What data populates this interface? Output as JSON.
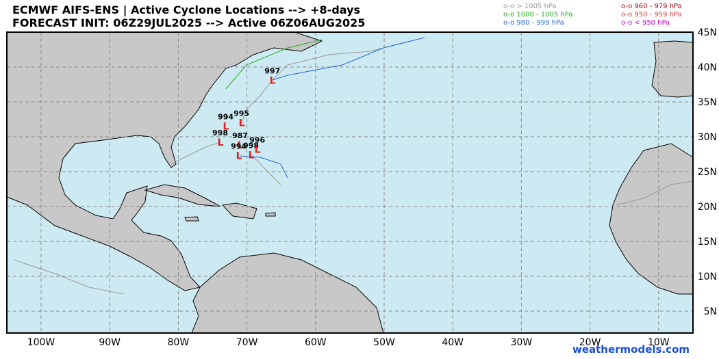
{
  "header": {
    "line1": "ECMWF AIFS-ENS | Active Cyclone Locations --> +8-days",
    "line2": "FORECAST INIT: 06Z29JUL2025 --> Active 06Z06AUG2025"
  },
  "legend": [
    {
      "label": "o-o > 1005 hPa",
      "color": "#999999"
    },
    {
      "label": "o-o 1000 - 1005 hPa",
      "color": "#22aa22"
    },
    {
      "label": "o-o 980 - 999 hPa",
      "color": "#2266dd"
    },
    {
      "label": "o-o 960 - 979 hPa",
      "color": "#aa0000"
    },
    {
      "label": "o-o 950 - 959 hPa",
      "color": "#dd3333"
    },
    {
      "label": "o-o < 950 hPa",
      "color": "#cc00cc"
    }
  ],
  "map": {
    "lon_ticks": [
      {
        "value": -100,
        "label": "100W"
      },
      {
        "value": -90,
        "label": "90W"
      },
      {
        "value": -80,
        "label": "80W"
      },
      {
        "value": -70,
        "label": "70W"
      },
      {
        "value": -60,
        "label": "60W"
      },
      {
        "value": -50,
        "label": "50W"
      },
      {
        "value": -40,
        "label": "40W"
      },
      {
        "value": -30,
        "label": "30W"
      },
      {
        "value": -20,
        "label": "20W"
      },
      {
        "value": -10,
        "label": "10W"
      }
    ],
    "lat_ticks": [
      {
        "value": 45,
        "label": "45N"
      },
      {
        "value": 40,
        "label": "40N"
      },
      {
        "value": 35,
        "label": "35N"
      },
      {
        "value": 30,
        "label": "30N"
      },
      {
        "value": 25,
        "label": "25N"
      },
      {
        "value": 20,
        "label": "20N"
      },
      {
        "value": 15,
        "label": "15N"
      },
      {
        "value": 10,
        "label": "10N"
      },
      {
        "value": 5,
        "label": "5N"
      }
    ],
    "cyclones": [
      {
        "pressure": "997",
        "lon": -66.3,
        "lat": 38.1
      },
      {
        "pressure": "994",
        "lon": -73.1,
        "lat": 31.5
      },
      {
        "pressure": "995",
        "lon": -70.8,
        "lat": 32.0
      },
      {
        "pressure": "998",
        "lon": -73.9,
        "lat": 29.2
      },
      {
        "pressure": "987",
        "lon": -71.0,
        "lat": 28.8
      },
      {
        "pressure": "994",
        "lon": -71.2,
        "lat": 27.3
      },
      {
        "pressure": "998",
        "lon": -69.4,
        "lat": 27.4
      },
      {
        "pressure": "996",
        "lon": -68.5,
        "lat": 28.2
      }
    ]
  },
  "watermark": "weathermodels.com"
}
